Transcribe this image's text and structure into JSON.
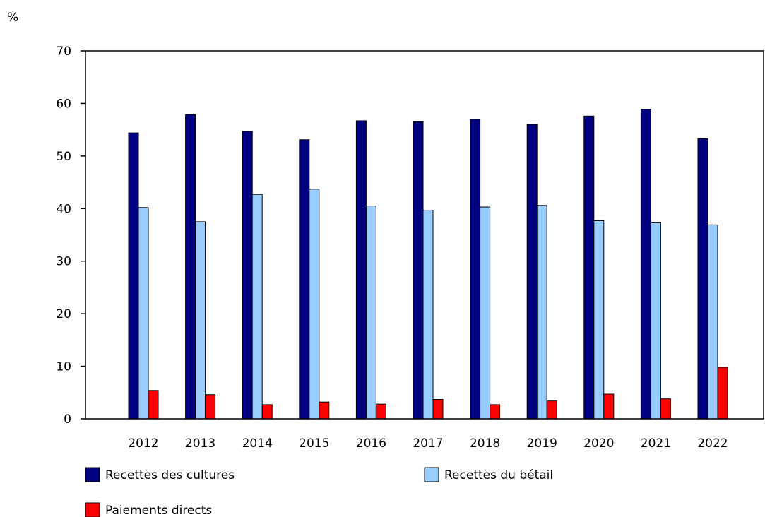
{
  "chart_data": {
    "type": "bar",
    "title": "",
    "xlabel": "",
    "ylabel": "%",
    "ylim": [
      0,
      70
    ],
    "yticks": [
      0,
      10,
      20,
      30,
      40,
      50,
      60,
      70
    ],
    "grid": false,
    "legend_placement": "bottom",
    "categories": [
      "2012",
      "2013",
      "2014",
      "2015",
      "2016",
      "2017",
      "2018",
      "2019",
      "2020",
      "2021",
      "2022"
    ],
    "series": [
      {
        "name": "Recettes des cultures",
        "color": "#000080",
        "values": [
          54.4,
          57.9,
          54.7,
          53.1,
          56.7,
          56.5,
          57.0,
          56.0,
          57.6,
          58.9,
          53.3
        ]
      },
      {
        "name": "Recettes du bétail",
        "color": "#99ccff",
        "values": [
          40.2,
          37.5,
          42.7,
          43.7,
          40.5,
          39.7,
          40.3,
          40.6,
          37.7,
          37.3,
          36.9
        ]
      },
      {
        "name": "Paiements directs",
        "color": "#ff0000",
        "values": [
          5.4,
          4.6,
          2.7,
          3.2,
          2.8,
          3.7,
          2.7,
          3.4,
          4.7,
          3.8,
          9.8
        ]
      }
    ]
  }
}
